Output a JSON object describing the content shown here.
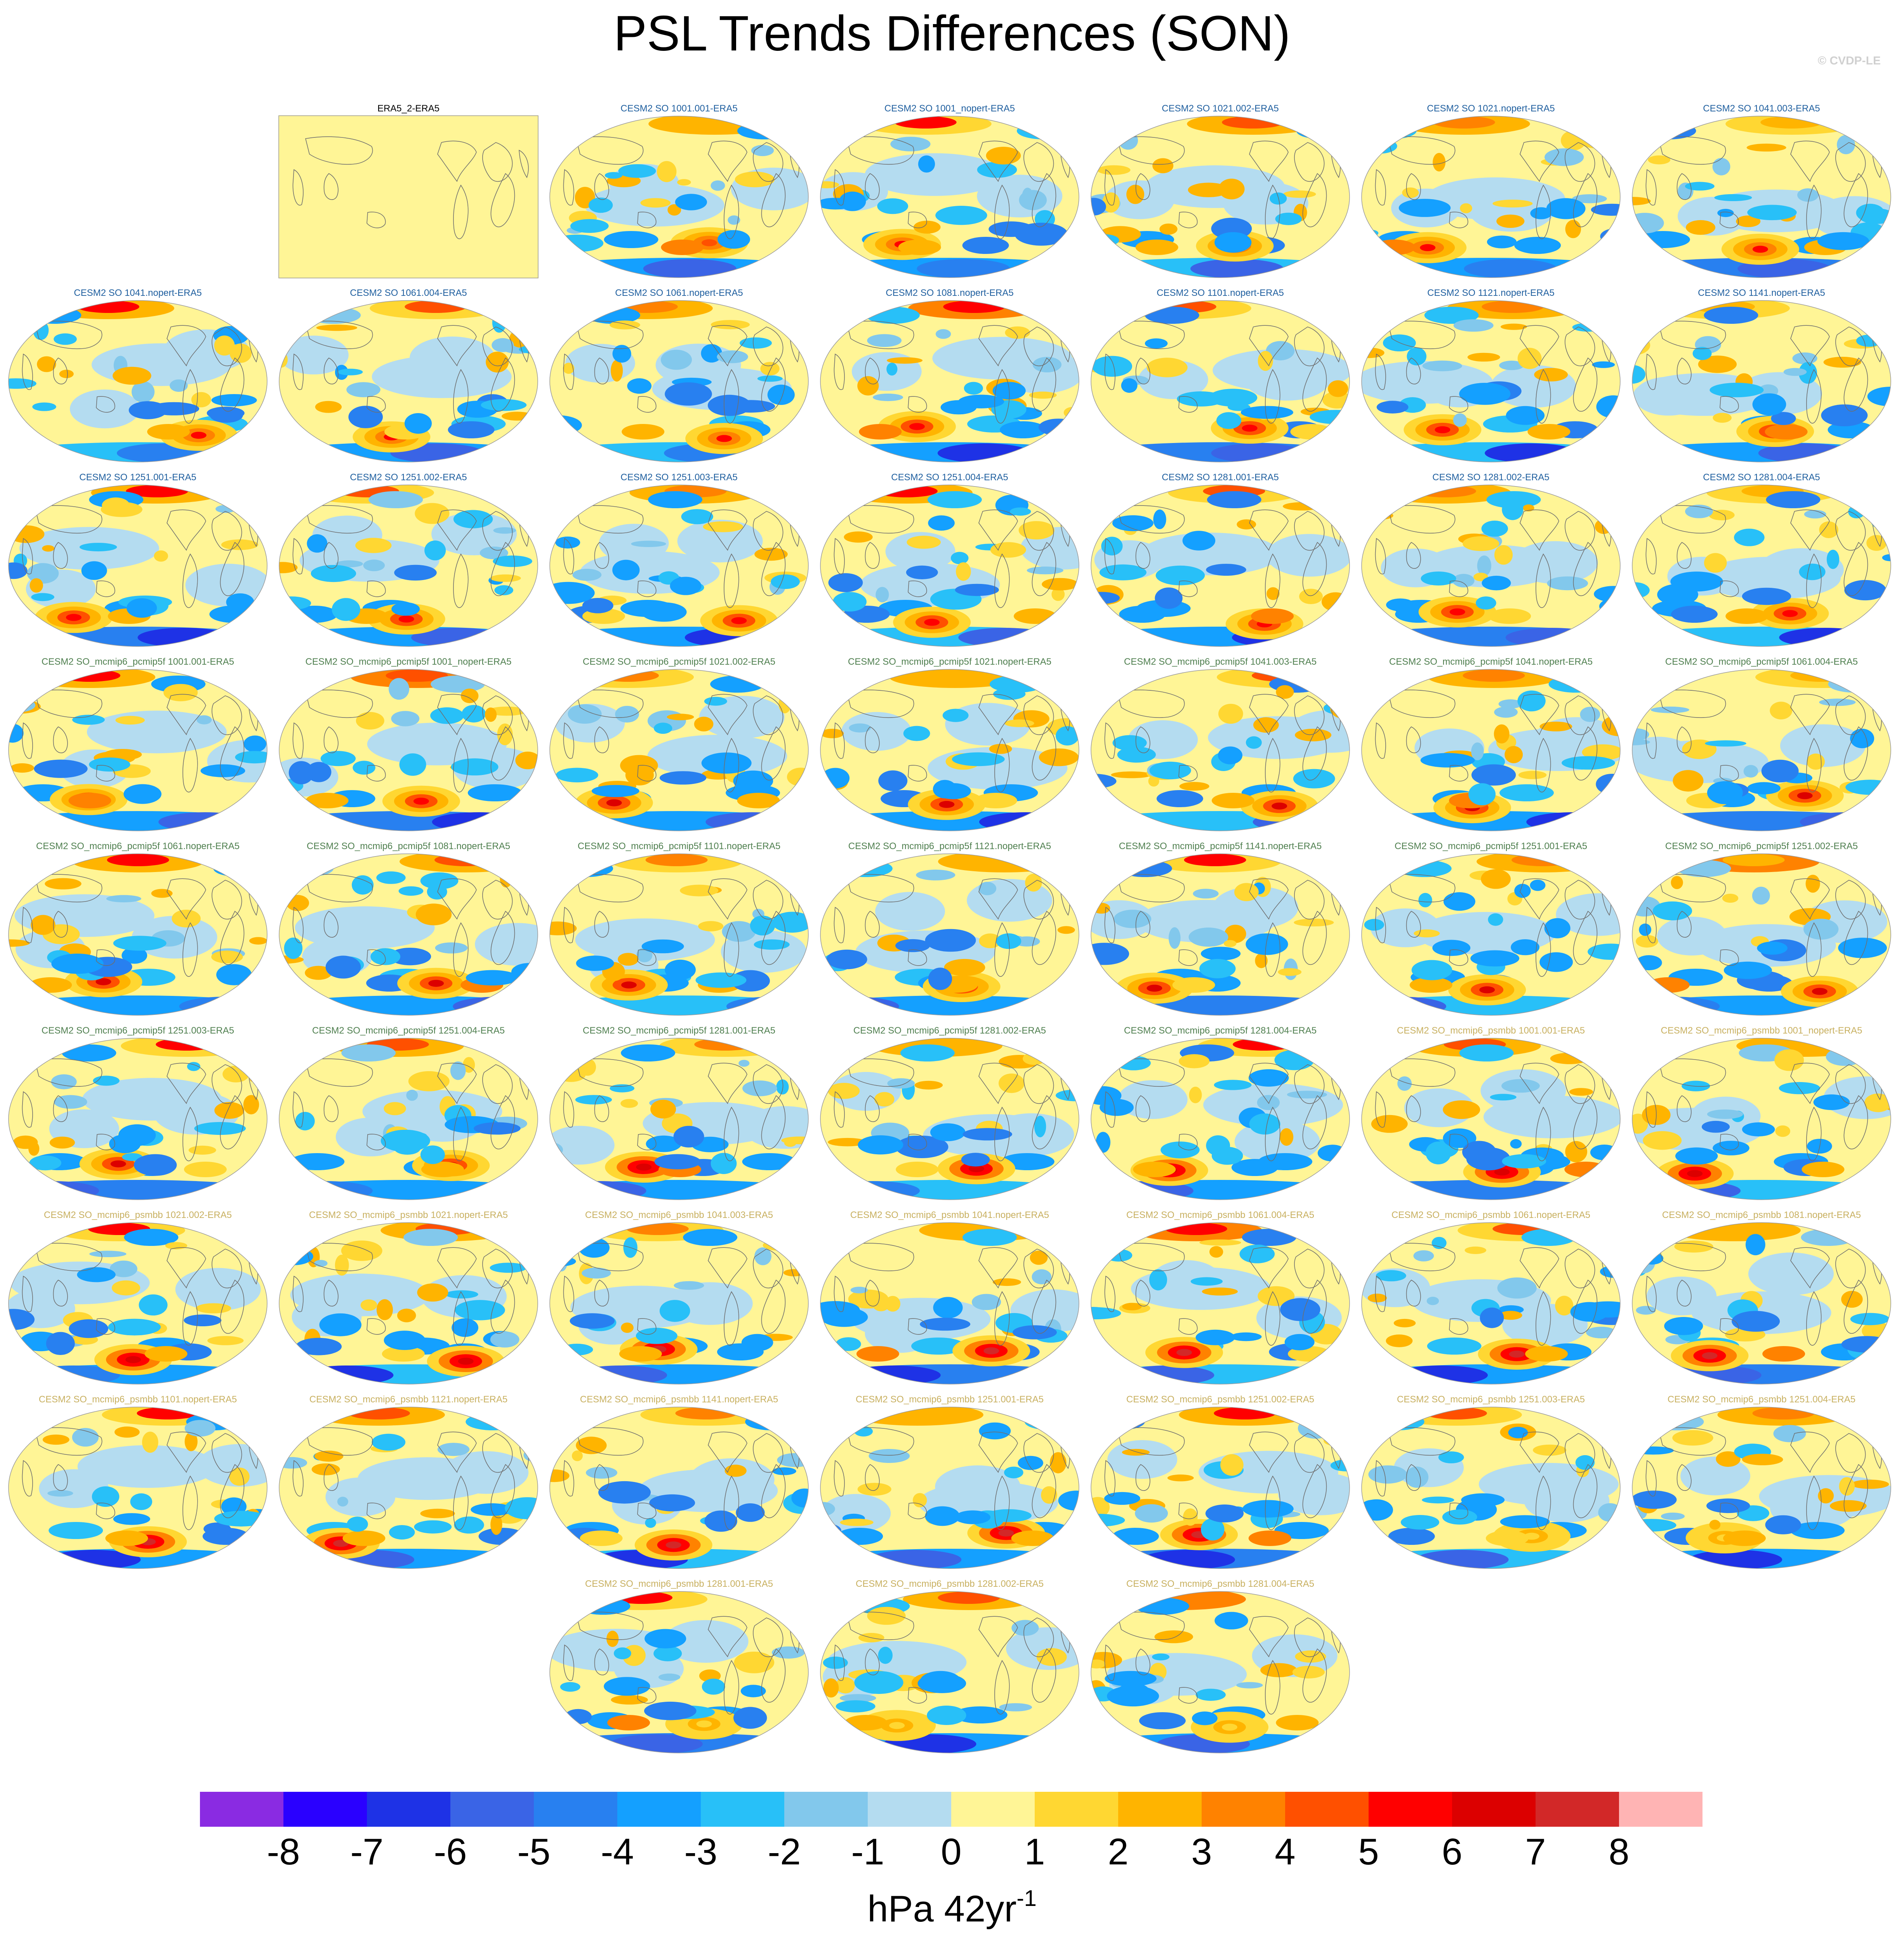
{
  "title": "PSL Trends Differences (SON)",
  "watermark": "© CVDP-LE",
  "colorbar": {
    "levels": [
      -8,
      -7,
      -6,
      -5,
      -4,
      -3,
      -2,
      -1,
      0,
      1,
      2,
      3,
      4,
      5,
      6,
      7,
      8
    ],
    "tick_labels": [
      "-8",
      "-7",
      "-6",
      "-5",
      "-4",
      "-3",
      "-2",
      "-1",
      "0",
      "1",
      "2",
      "3",
      "4",
      "5",
      "6",
      "7",
      "8"
    ],
    "colors": [
      "#8a2be2",
      "#2a00ff",
      "#1e32e6",
      "#3a64e6",
      "#2880f0",
      "#14a0ff",
      "#28c0f8",
      "#82c8ec",
      "#b4dcf0",
      "#fff596",
      "#ffd732",
      "#ffb400",
      "#ff8200",
      "#ff5000",
      "#ff0000",
      "#dc0000",
      "#d22828",
      "#ffb4b4"
    ],
    "units_text": "hPa 42yr",
    "units_exp": "-1"
  },
  "chart_data": {
    "type": "map",
    "title": "PSL Trends Differences (SON)",
    "variable": "PSL",
    "season": "SON",
    "units": "hPa 42yr-1",
    "contour_levels": [
      -8,
      -7,
      -6,
      -5,
      -4,
      -3,
      -2,
      -1,
      0,
      1,
      2,
      3,
      4,
      5,
      6,
      7,
      8
    ],
    "label_colors": {
      "ERA5": "#000000",
      "SO": "#1f5f9f",
      "pcmip5f": "#4f7f4f",
      "psmbb": "#c8b060"
    },
    "panels": [
      {
        "label": "ERA5_2-ERA5",
        "group": "ERA5",
        "row": 0,
        "col": 1
      },
      {
        "label": "CESM2 SO 1001.001-ERA5",
        "group": "SO",
        "row": 0,
        "col": 2
      },
      {
        "label": "CESM2 SO 1001_nopert-ERA5",
        "group": "SO",
        "row": 0,
        "col": 3
      },
      {
        "label": "CESM2 SO 1021.002-ERA5",
        "group": "SO",
        "row": 0,
        "col": 4
      },
      {
        "label": "CESM2 SO 1021.nopert-ERA5",
        "group": "SO",
        "row": 0,
        "col": 5
      },
      {
        "label": "CESM2 SO 1041.003-ERA5",
        "group": "SO",
        "row": 0,
        "col": 6
      },
      {
        "label": "CESM2 SO 1041.nopert-ERA5",
        "group": "SO",
        "row": 1,
        "col": 0
      },
      {
        "label": "CESM2 SO 1061.004-ERA5",
        "group": "SO",
        "row": 1,
        "col": 1
      },
      {
        "label": "CESM2 SO 1061.nopert-ERA5",
        "group": "SO",
        "row": 1,
        "col": 2
      },
      {
        "label": "CESM2 SO 1081.nopert-ERA5",
        "group": "SO",
        "row": 1,
        "col": 3
      },
      {
        "label": "CESM2 SO 1101.nopert-ERA5",
        "group": "SO",
        "row": 1,
        "col": 4
      },
      {
        "label": "CESM2 SO 1121.nopert-ERA5",
        "group": "SO",
        "row": 1,
        "col": 5
      },
      {
        "label": "CESM2 SO 1141.nopert-ERA5",
        "group": "SO",
        "row": 1,
        "col": 6
      },
      {
        "label": "CESM2 SO 1251.001-ERA5",
        "group": "SO",
        "row": 2,
        "col": 0
      },
      {
        "label": "CESM2 SO 1251.002-ERA5",
        "group": "SO",
        "row": 2,
        "col": 1
      },
      {
        "label": "CESM2 SO 1251.003-ERA5",
        "group": "SO",
        "row": 2,
        "col": 2
      },
      {
        "label": "CESM2 SO 1251.004-ERA5",
        "group": "SO",
        "row": 2,
        "col": 3
      },
      {
        "label": "CESM2 SO 1281.001-ERA5",
        "group": "SO",
        "row": 2,
        "col": 4
      },
      {
        "label": "CESM2 SO 1281.002-ERA5",
        "group": "SO",
        "row": 2,
        "col": 5
      },
      {
        "label": "CESM2 SO 1281.004-ERA5",
        "group": "SO",
        "row": 2,
        "col": 6
      },
      {
        "label": "CESM2 SO_mcmip6_pcmip5f 1001.001-ERA5",
        "group": "pcmip5f",
        "row": 3,
        "col": 0
      },
      {
        "label": "CESM2 SO_mcmip6_pcmip5f 1001_nopert-ERA5",
        "group": "pcmip5f",
        "row": 3,
        "col": 1
      },
      {
        "label": "CESM2 SO_mcmip6_pcmip5f 1021.002-ERA5",
        "group": "pcmip5f",
        "row": 3,
        "col": 2
      },
      {
        "label": "CESM2 SO_mcmip6_pcmip5f 1021.nopert-ERA5",
        "group": "pcmip5f",
        "row": 3,
        "col": 3
      },
      {
        "label": "CESM2 SO_mcmip6_pcmip5f 1041.003-ERA5",
        "group": "pcmip5f",
        "row": 3,
        "col": 4
      },
      {
        "label": "CESM2 SO_mcmip6_pcmip5f 1041.nopert-ERA5",
        "group": "pcmip5f",
        "row": 3,
        "col": 5
      },
      {
        "label": "CESM2 SO_mcmip6_pcmip5f 1061.004-ERA5",
        "group": "pcmip5f",
        "row": 3,
        "col": 6
      },
      {
        "label": "CESM2 SO_mcmip6_pcmip5f 1061.nopert-ERA5",
        "group": "pcmip5f",
        "row": 4,
        "col": 0
      },
      {
        "label": "CESM2 SO_mcmip6_pcmip5f 1081.nopert-ERA5",
        "group": "pcmip5f",
        "row": 4,
        "col": 1
      },
      {
        "label": "CESM2 SO_mcmip6_pcmip5f 1101.nopert-ERA5",
        "group": "pcmip5f",
        "row": 4,
        "col": 2
      },
      {
        "label": "CESM2 SO_mcmip6_pcmip5f 1121.nopert-ERA5",
        "group": "pcmip5f",
        "row": 4,
        "col": 3
      },
      {
        "label": "CESM2 SO_mcmip6_pcmip5f 1141.nopert-ERA5",
        "group": "pcmip5f",
        "row": 4,
        "col": 4
      },
      {
        "label": "CESM2 SO_mcmip6_pcmip5f 1251.001-ERA5",
        "group": "pcmip5f",
        "row": 4,
        "col": 5
      },
      {
        "label": "CESM2 SO_mcmip6_pcmip5f 1251.002-ERA5",
        "group": "pcmip5f",
        "row": 4,
        "col": 6
      },
      {
        "label": "CESM2 SO_mcmip6_pcmip5f 1251.003-ERA5",
        "group": "pcmip5f",
        "row": 5,
        "col": 0
      },
      {
        "label": "CESM2 SO_mcmip6_pcmip5f 1251.004-ERA5",
        "group": "pcmip5f",
        "row": 5,
        "col": 1
      },
      {
        "label": "CESM2 SO_mcmip6_pcmip5f 1281.001-ERA5",
        "group": "pcmip5f",
        "row": 5,
        "col": 2
      },
      {
        "label": "CESM2 SO_mcmip6_pcmip5f 1281.002-ERA5",
        "group": "pcmip5f",
        "row": 5,
        "col": 3
      },
      {
        "label": "CESM2 SO_mcmip6_pcmip5f 1281.004-ERA5",
        "group": "pcmip5f",
        "row": 5,
        "col": 4
      },
      {
        "label": "CESM2 SO_mcmip6_psmbb 1001.001-ERA5",
        "group": "psmbb",
        "row": 5,
        "col": 5
      },
      {
        "label": "CESM2 SO_mcmip6_psmbb 1001_nopert-ERA5",
        "group": "psmbb",
        "row": 5,
        "col": 6
      },
      {
        "label": "CESM2 SO_mcmip6_psmbb 1021.002-ERA5",
        "group": "psmbb",
        "row": 6,
        "col": 0
      },
      {
        "label": "CESM2 SO_mcmip6_psmbb 1021.nopert-ERA5",
        "group": "psmbb",
        "row": 6,
        "col": 1
      },
      {
        "label": "CESM2 SO_mcmip6_psmbb 1041.003-ERA5",
        "group": "psmbb",
        "row": 6,
        "col": 2
      },
      {
        "label": "CESM2 SO_mcmip6_psmbb 1041.nopert-ERA5",
        "group": "psmbb",
        "row": 6,
        "col": 3
      },
      {
        "label": "CESM2 SO_mcmip6_psmbb 1061.004-ERA5",
        "group": "psmbb",
        "row": 6,
        "col": 4
      },
      {
        "label": "CESM2 SO_mcmip6_psmbb 1061.nopert-ERA5",
        "group": "psmbb",
        "row": 6,
        "col": 5
      },
      {
        "label": "CESM2 SO_mcmip6_psmbb 1081.nopert-ERA5",
        "group": "psmbb",
        "row": 6,
        "col": 6
      },
      {
        "label": "CESM2 SO_mcmip6_psmbb 1101.nopert-ERA5",
        "group": "psmbb",
        "row": 7,
        "col": 0
      },
      {
        "label": "CESM2 SO_mcmip6_psmbb 1121.nopert-ERA5",
        "group": "psmbb",
        "row": 7,
        "col": 1
      },
      {
        "label": "CESM2 SO_mcmip6_psmbb 1141.nopert-ERA5",
        "group": "psmbb",
        "row": 7,
        "col": 2
      },
      {
        "label": "CESM2 SO_mcmip6_psmbb 1251.001-ERA5",
        "group": "psmbb",
        "row": 7,
        "col": 3
      },
      {
        "label": "CESM2 SO_mcmip6_psmbb 1251.002-ERA5",
        "group": "psmbb",
        "row": 7,
        "col": 4
      },
      {
        "label": "CESM2 SO_mcmip6_psmbb 1251.003-ERA5",
        "group": "psmbb",
        "row": 7,
        "col": 5
      },
      {
        "label": "CESM2 SO_mcmip6_psmbb 1251.004-ERA5",
        "group": "psmbb",
        "row": 7,
        "col": 6
      },
      {
        "label": "CESM2 SO_mcmip6_psmbb 1281.001-ERA5",
        "group": "psmbb",
        "row": 8,
        "col": 2
      },
      {
        "label": "CESM2 SO_mcmip6_psmbb 1281.002-ERA5",
        "group": "psmbb",
        "row": 8,
        "col": 3
      },
      {
        "label": "CESM2 SO_mcmip6_psmbb 1281.004-ERA5",
        "group": "psmbb",
        "row": 8,
        "col": 4
      }
    ]
  }
}
